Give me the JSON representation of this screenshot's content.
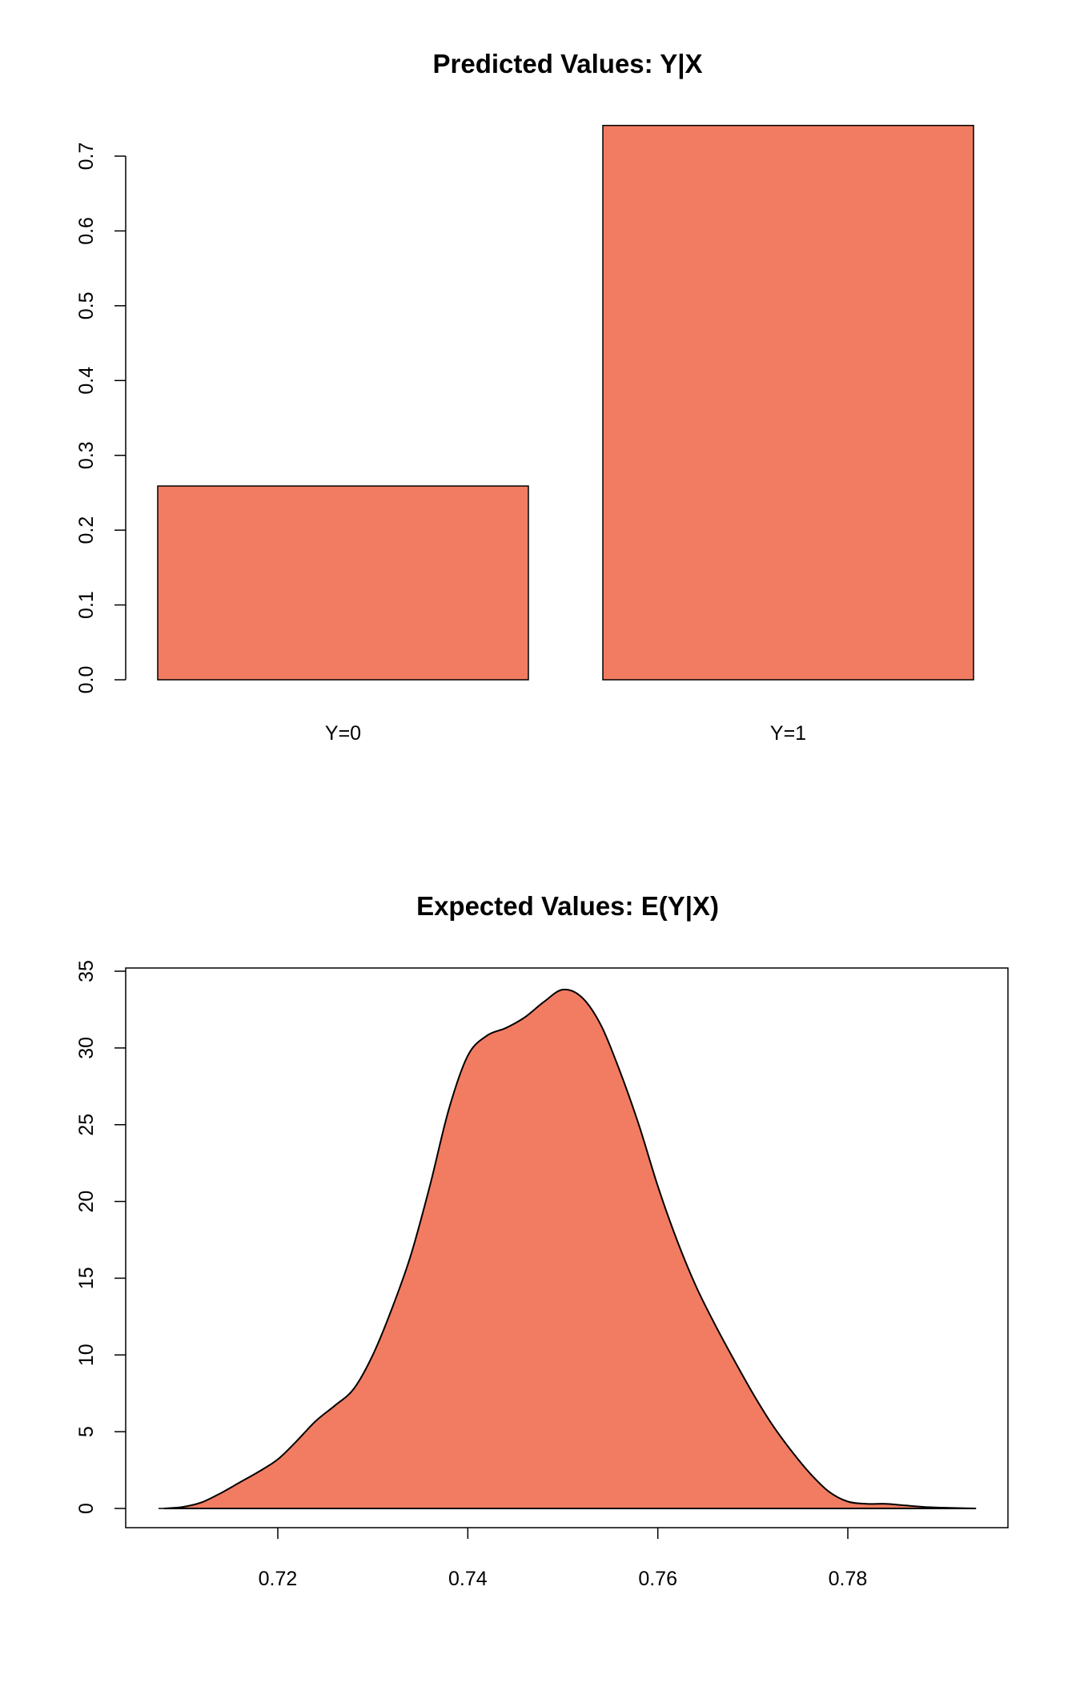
{
  "chart_data": [
    {
      "type": "bar",
      "title": "Predicted Values: Y|X",
      "categories": [
        "Y=0",
        "Y=1"
      ],
      "values": [
        0.259,
        0.741
      ],
      "ylim": [
        0,
        0.7
      ],
      "yticks": [
        "0.0",
        "0.1",
        "0.2",
        "0.3",
        "0.4",
        "0.5",
        "0.6",
        "0.7"
      ],
      "color": "#F27C62",
      "grid": false
    },
    {
      "type": "area",
      "title": "Expected Values: E(Y|X)",
      "xlim": [
        0.708,
        0.794
      ],
      "ylim": [
        0,
        35
      ],
      "xticks": [
        "0.72",
        "0.74",
        "0.76",
        "0.78"
      ],
      "yticks": [
        "0",
        "5",
        "10",
        "15",
        "20",
        "25",
        "30",
        "35"
      ],
      "color": "#F27C62",
      "grid": false,
      "x": [
        0.708,
        0.71,
        0.712,
        0.714,
        0.716,
        0.718,
        0.72,
        0.722,
        0.724,
        0.726,
        0.728,
        0.73,
        0.732,
        0.734,
        0.736,
        0.738,
        0.74,
        0.742,
        0.744,
        0.746,
        0.748,
        0.75,
        0.752,
        0.754,
        0.756,
        0.758,
        0.76,
        0.762,
        0.764,
        0.766,
        0.768,
        0.77,
        0.772,
        0.774,
        0.776,
        0.778,
        0.78,
        0.782,
        0.784,
        0.786,
        0.788,
        0.79,
        0.792,
        0.7935
      ],
      "y": [
        0.0,
        0.1,
        0.4,
        1.0,
        1.7,
        2.4,
        3.2,
        4.4,
        5.7,
        6.7,
        7.8,
        10.0,
        13.0,
        16.5,
        21.0,
        26.0,
        29.5,
        30.8,
        31.3,
        32.0,
        33.0,
        33.8,
        33.3,
        31.5,
        28.5,
        25.0,
        21.0,
        17.5,
        14.5,
        12.0,
        9.7,
        7.5,
        5.5,
        3.8,
        2.3,
        1.1,
        0.45,
        0.3,
        0.3,
        0.2,
        0.1,
        0.05,
        0.02,
        0.0
      ]
    }
  ]
}
